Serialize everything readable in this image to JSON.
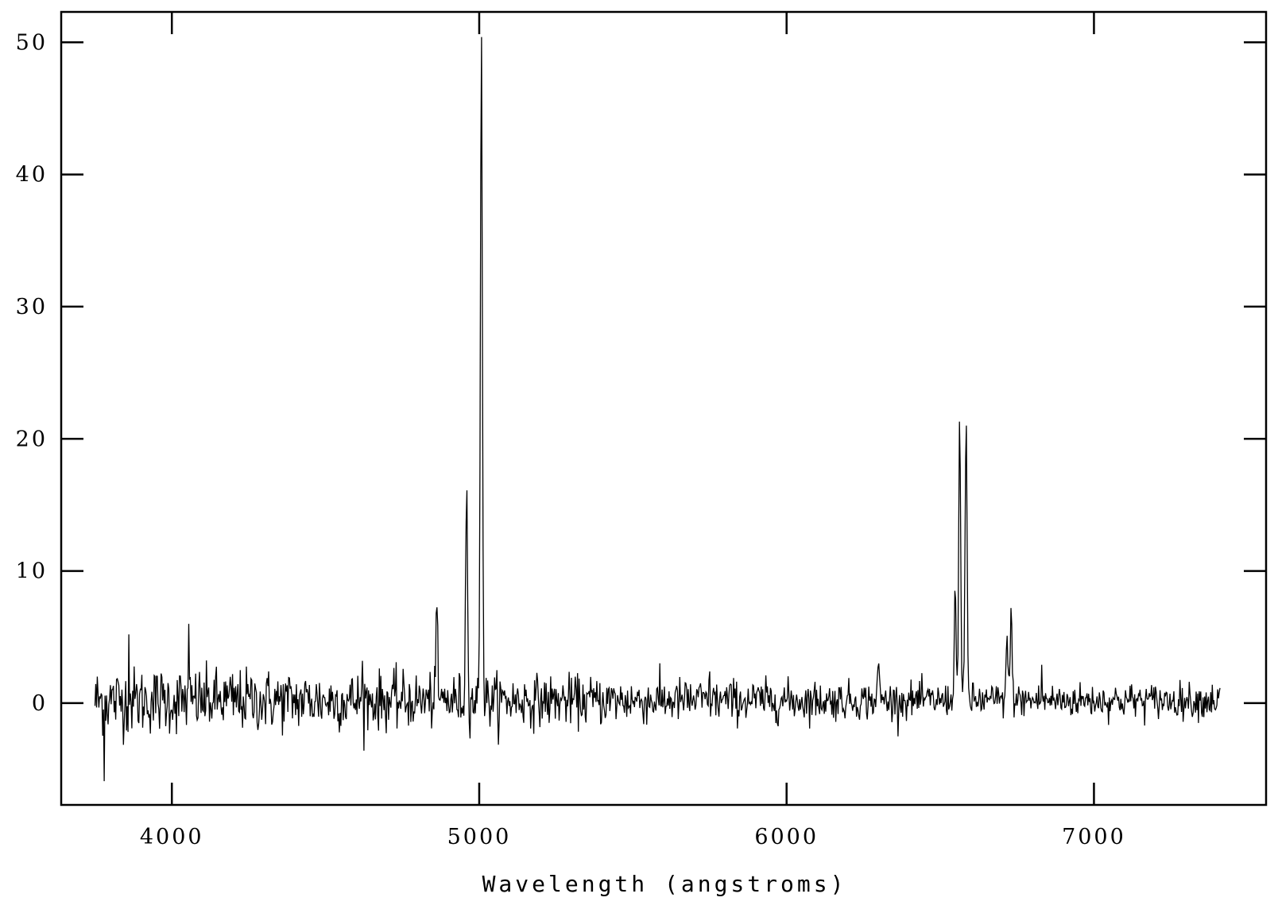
{
  "chart_data": {
    "type": "line",
    "title": "",
    "xlabel": "Wavelength (angstroms)",
    "ylabel": "",
    "xlim": [
      3640,
      7560
    ],
    "ylim": [
      -7.7,
      52.3
    ],
    "x_ticks": [
      4000,
      5000,
      6000,
      7000
    ],
    "x_tick_labels": [
      "4000",
      "5000",
      "6000",
      "7000"
    ],
    "y_ticks": [
      0,
      10,
      20,
      30,
      40,
      50
    ],
    "y_tick_labels": [
      "0",
      "10",
      "20",
      "30",
      "40",
      "50"
    ],
    "grid": false,
    "legend": "none",
    "line_color": "#000000",
    "noise": {
      "x_range": [
        3750,
        7410
      ],
      "step": 2.5,
      "sigma_blue": 1.3,
      "sigma_red": 0.65,
      "baseline": 0.2
    },
    "emission_lines": [
      {
        "x": 4861,
        "peak": 6.8
      },
      {
        "x": 4959,
        "peak": 16.1
      },
      {
        "x": 5007,
        "peak": 50.4
      },
      {
        "x": 6300,
        "peak": 3.0
      },
      {
        "x": 6548,
        "peak": 8.5
      },
      {
        "x": 6563,
        "peak": 21.3
      },
      {
        "x": 6584,
        "peak": 21.0
      },
      {
        "x": 6717,
        "peak": 5.1
      },
      {
        "x": 6731,
        "peak": 7.2
      }
    ],
    "notable_points": [
      {
        "x": 3780,
        "y": -5.9
      },
      {
        "x": 3860,
        "y": 5.2
      },
      {
        "x": 4055,
        "y": 6.0
      },
      {
        "x": 4620,
        "y": 3.2
      },
      {
        "x": 5750,
        "y": 2.4
      },
      {
        "x": 6830,
        "y": 2.9
      }
    ]
  }
}
